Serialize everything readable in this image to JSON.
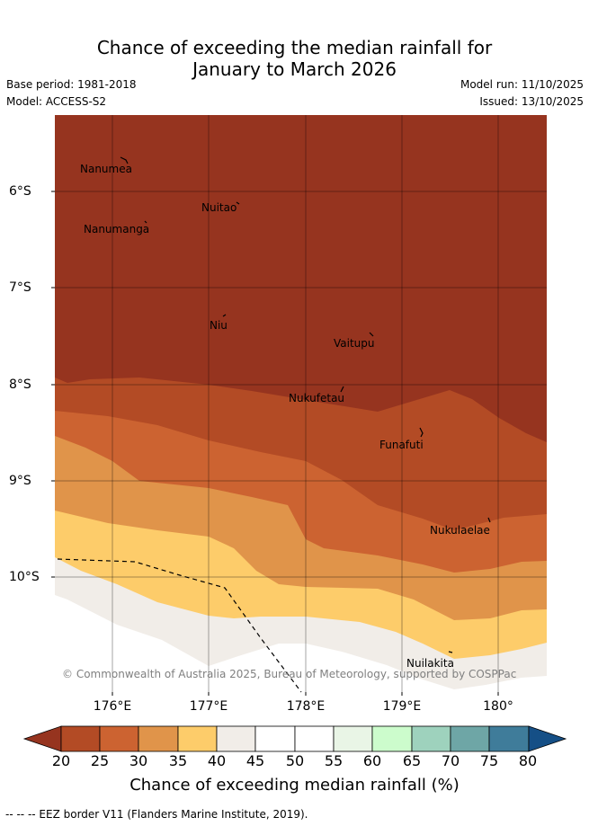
{
  "header": {
    "title_line1": "Chance of exceeding the median rainfall for",
    "title_line2": "January to March 2026",
    "base_period": "Base period: 1981-2018",
    "model": "Model: ACCESS-S2",
    "model_run": "Model run: 11/10/2025",
    "issued": "Issued: 13/10/2025"
  },
  "map": {
    "lat_labels": [
      "6°S",
      "7°S",
      "8°S",
      "9°S",
      "10°S"
    ],
    "lon_labels": [
      "176°E",
      "177°E",
      "178°E",
      "179°E",
      "180°"
    ],
    "places": [
      {
        "name": "Nanumea"
      },
      {
        "name": "Nuitao"
      },
      {
        "name": "Nanumanga"
      },
      {
        "name": "Niu"
      },
      {
        "name": "Vaitupu"
      },
      {
        "name": "Nukufetau"
      },
      {
        "name": "Funafuti"
      },
      {
        "name": "Nukulaelae"
      },
      {
        "name": "Nuilakita"
      }
    ],
    "copyright": "© Commonwealth of Australia 2025, Bureau of Meteorology, supported by COSPPac"
  },
  "colorbar": {
    "ticks": [
      "20",
      "25",
      "30",
      "35",
      "40",
      "45",
      "50",
      "55",
      "60",
      "65",
      "70",
      "75",
      "80"
    ],
    "colors": [
      "#96341f",
      "#b34b25",
      "#cc6331",
      "#e0944a",
      "#fdcc6a",
      "#f1ede8",
      "#ffffff",
      "#ffffff",
      "#e9f5e6",
      "#ccfccc",
      "#9ed2bd",
      "#6ea6a6",
      "#3f7c9a",
      "#154f86"
    ],
    "label": "Chance of exceeding median rainfall (%)"
  },
  "footer": {
    "eez_note": "-- -- -- EEZ border V11 (Flanders Marine Institute, 2019)."
  }
}
